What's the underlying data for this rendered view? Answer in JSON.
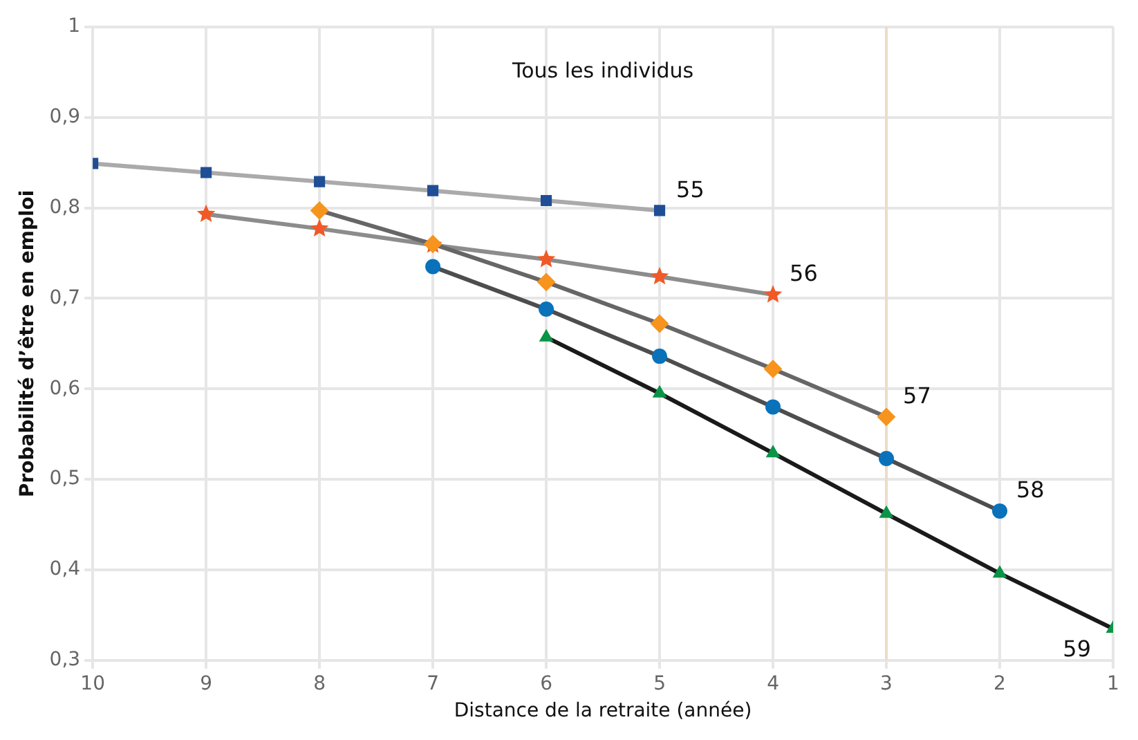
{
  "chart_data": {
    "type": "line",
    "title": "Tous les individus",
    "xlabel": "Distance de la retraite (année)",
    "ylabel": "Probabilité d’être en emploi",
    "xlim": [
      10,
      1
    ],
    "xticks": [
      10,
      9,
      8,
      7,
      6,
      5,
      4,
      3,
      2,
      1
    ],
    "ylim": [
      0.3,
      1
    ],
    "yticks": [
      {
        "value": 0.3,
        "label": "0,3"
      },
      {
        "value": 0.4,
        "label": "0,4"
      },
      {
        "value": 0.5,
        "label": "0,5"
      },
      {
        "value": 0.6,
        "label": "0,6"
      },
      {
        "value": 0.7,
        "label": "0,7"
      },
      {
        "value": 0.8,
        "label": "0,8"
      },
      {
        "value": 0.9,
        "label": "0,9"
      },
      1
    ],
    "grid": true,
    "legend": false,
    "line_style": "solid",
    "series": [
      {
        "color": "#1f4e96",
        "marker": "square",
        "x": [
          10,
          9,
          8,
          7,
          6,
          5
        ],
        "values": [
          0.849,
          0.839,
          0.829,
          0.819,
          0.808,
          0.797
        ]
      },
      {
        "color": "#f05a28",
        "marker": "star",
        "x": [
          9,
          8,
          7,
          6,
          5,
          4
        ],
        "values": [
          0.793,
          0.777,
          0.759,
          0.743,
          0.724,
          0.704
        ]
      },
      {
        "color": "#f7941d",
        "marker": "diamond",
        "x": [
          8,
          7,
          6,
          5,
          4,
          3
        ],
        "values": [
          0.797,
          0.76,
          0.718,
          0.672,
          0.622,
          0.569
        ]
      },
      {
        "color": "#0a72ba",
        "marker": "circle",
        "x": [
          7,
          6,
          5,
          4,
          3,
          2
        ],
        "values": [
          0.735,
          0.688,
          0.636,
          0.58,
          0.523,
          0.465
        ]
      },
      {
        "color": "#0a9447",
        "marker": "triangle",
        "x": [
          6,
          5,
          4,
          3,
          2,
          1
        ],
        "values": [
          0.657,
          0.595,
          0.529,
          0.462,
          0.396,
          0.335
        ]
      }
    ],
    "ref_lines": [
      {
        "axis": "x",
        "value": 3,
        "color": "#ecdcc8"
      }
    ],
    "annotations": [
      {
        "text": "55",
        "x": 5,
        "y": 0.797
      },
      {
        "text": "56",
        "x": 4,
        "y": 0.704
      },
      {
        "text": "57",
        "x": 3,
        "y": 0.569
      },
      {
        "text": "58",
        "x": 2,
        "y": 0.465
      },
      {
        "text": "59",
        "x": 1,
        "y": 0.335
      }
    ]
  }
}
